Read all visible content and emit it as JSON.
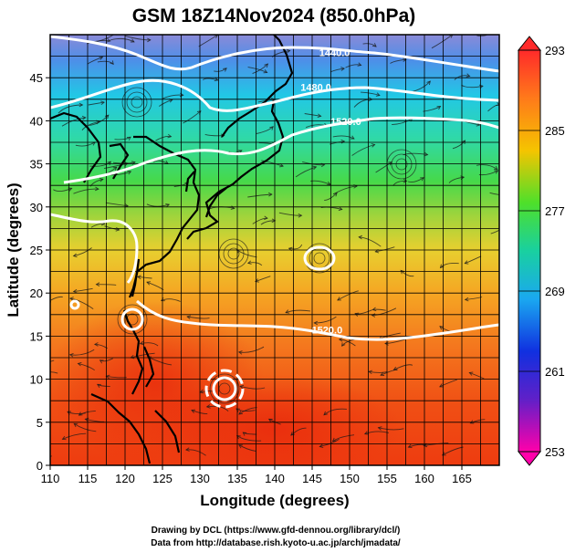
{
  "chart_data": {
    "type": "heatmap",
    "title": "GSM 18Z14Nov2024 (850.0hPa)",
    "xlabel": "Longitude (degrees)",
    "ylabel": "Latitude  (degrees)",
    "xlim": [
      110,
      170
    ],
    "ylim": [
      0,
      50
    ],
    "x_ticks": [
      110,
      115,
      120,
      125,
      130,
      135,
      140,
      145,
      150,
      155,
      160,
      165
    ],
    "y_ticks": [
      0,
      5,
      10,
      15,
      20,
      25,
      30,
      35,
      40,
      45
    ],
    "grid": true,
    "colorbar": {
      "min": 253,
      "max": 293,
      "ticks": [
        253,
        261,
        269,
        277,
        285,
        293
      ]
    },
    "contours": [
      {
        "label": "1440.0",
        "lon": 148,
        "lat": 47.5
      },
      {
        "label": "1480.0",
        "lon": 145.5,
        "lat": 43.5
      },
      {
        "label": "1520.0",
        "lon": 149.5,
        "lat": 39.5
      },
      {
        "label": "1520.0",
        "lon": 147,
        "lat": 15.3
      }
    ]
  },
  "credits": {
    "line1": "Drawing by DCL (https://www.gfd-dennou.org/library/dcl/)",
    "line2": "Data from http://database.rish.kyoto-u.ac.jp/arch/jmadata/"
  }
}
